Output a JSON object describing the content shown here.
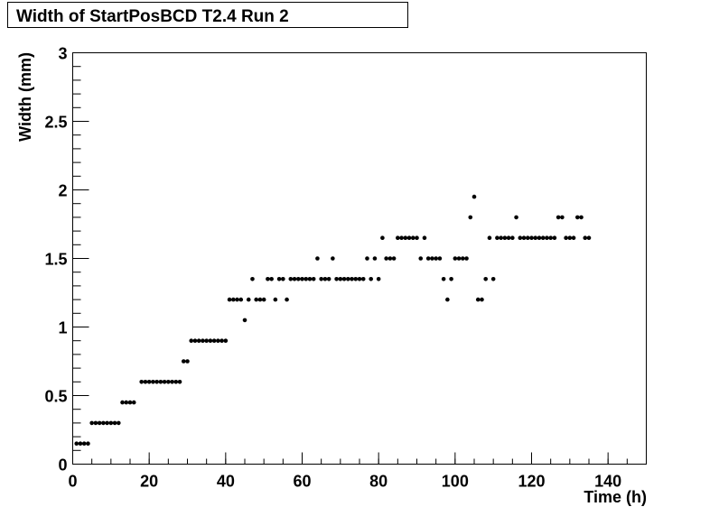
{
  "chart_data": {
    "type": "scatter",
    "title": "Width of StartPosBCD T2.4 Run 2",
    "x_label": "Time (h)",
    "y_label": "Width (mm)",
    "color": "#000000",
    "xlim": [
      0,
      150
    ],
    "xticks": [
      0,
      20,
      40,
      60,
      80,
      100,
      120,
      140
    ],
    "ylim": [
      0,
      3
    ],
    "yticks": [
      0,
      0.5,
      1,
      1.5,
      2,
      2.5,
      3
    ],
    "x": [
      1,
      2,
      3,
      4,
      5,
      6,
      7,
      8,
      9,
      10,
      11,
      12,
      13,
      14,
      15,
      16,
      18,
      19,
      20,
      21,
      22,
      23,
      24,
      25,
      26,
      27,
      28,
      29,
      30,
      31,
      32,
      33,
      34,
      35,
      36,
      37,
      38,
      39,
      40,
      41,
      42,
      43,
      44,
      45,
      46,
      47,
      48,
      49,
      50,
      51,
      52,
      53,
      54,
      55,
      56,
      57,
      58,
      59,
      60,
      61,
      62,
      63,
      64,
      65,
      66,
      67,
      68,
      69,
      70,
      71,
      72,
      73,
      74,
      75,
      76,
      77,
      78,
      79,
      80,
      81,
      82,
      83,
      84,
      85,
      86,
      87,
      88,
      89,
      90,
      91,
      92,
      93,
      94,
      95,
      96,
      97,
      98,
      99,
      100,
      101,
      102,
      103,
      104,
      105,
      106,
      107,
      108,
      109,
      110,
      111,
      112,
      113,
      114,
      115,
      116,
      117,
      118,
      119,
      120,
      121,
      122,
      123,
      124,
      125,
      126,
      127,
      128,
      129,
      130,
      131,
      132,
      133,
      134,
      135
    ],
    "values": [
      0.15,
      0.15,
      0.15,
      0.15,
      0.3,
      0.3,
      0.3,
      0.3,
      0.3,
      0.3,
      0.3,
      0.3,
      0.45,
      0.45,
      0.45,
      0.45,
      0.6,
      0.6,
      0.6,
      0.6,
      0.6,
      0.6,
      0.6,
      0.6,
      0.6,
      0.6,
      0.6,
      0.75,
      0.75,
      0.9,
      0.9,
      0.9,
      0.9,
      0.9,
      0.9,
      0.9,
      0.9,
      0.9,
      0.9,
      1.2,
      1.2,
      1.2,
      1.2,
      1.05,
      1.2,
      1.35,
      1.2,
      1.2,
      1.2,
      1.35,
      1.35,
      1.2,
      1.35,
      1.35,
      1.2,
      1.35,
      1.35,
      1.35,
      1.35,
      1.35,
      1.35,
      1.35,
      1.5,
      1.35,
      1.35,
      1.35,
      1.5,
      1.35,
      1.35,
      1.35,
      1.35,
      1.35,
      1.35,
      1.35,
      1.35,
      1.5,
      1.35,
      1.5,
      1.35,
      1.65,
      1.5,
      1.5,
      1.5,
      1.65,
      1.65,
      1.65,
      1.65,
      1.65,
      1.65,
      1.5,
      1.65,
      1.5,
      1.5,
      1.5,
      1.5,
      1.35,
      1.2,
      1.35,
      1.5,
      1.5,
      1.5,
      1.5,
      1.8,
      1.95,
      1.2,
      1.2,
      1.35,
      1.65,
      1.35,
      1.65,
      1.65,
      1.65,
      1.65,
      1.65,
      1.8,
      1.65,
      1.65,
      1.65,
      1.65,
      1.65,
      1.65,
      1.65,
      1.65,
      1.65,
      1.65,
      1.8,
      1.8,
      1.65,
      1.65,
      1.65,
      1.8,
      1.8,
      1.65,
      1.65
    ]
  }
}
